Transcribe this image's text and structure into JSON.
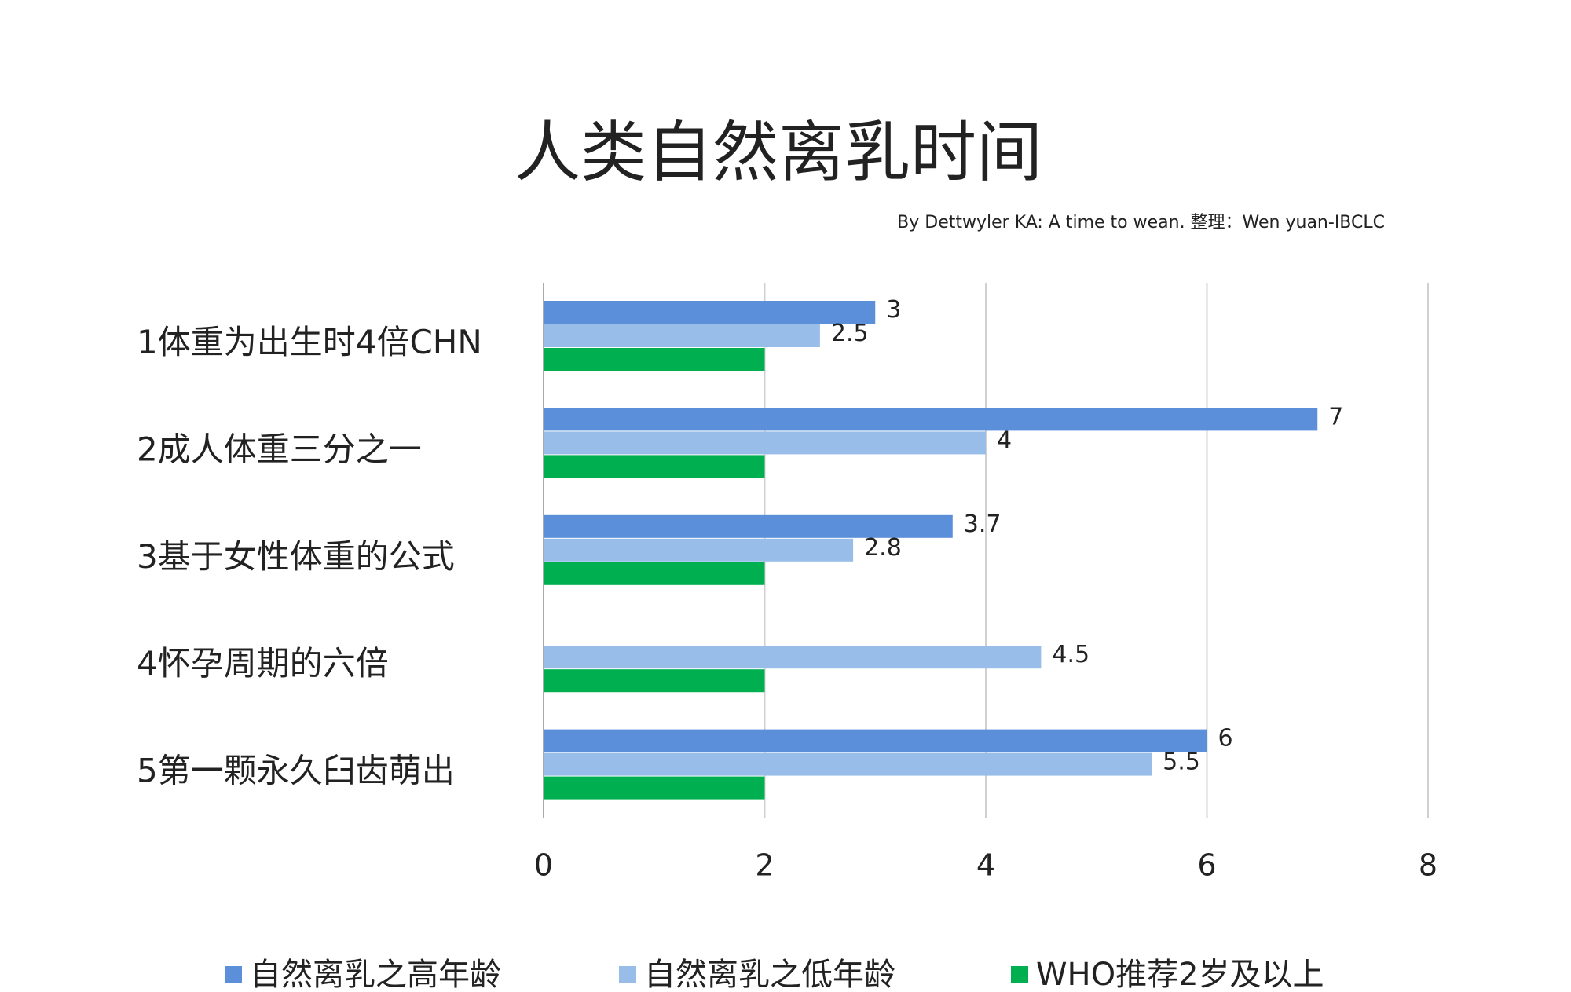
{
  "chart_data": {
    "type": "bar",
    "orientation": "horizontal",
    "title": "人类自然离乳时间",
    "subtitle": "By Dettwyler KA: A time to wean.  整理：Wen yuan-IBCLC",
    "categories": [
      "1体重为出生时4倍CHN",
      "2成人体重三分之一",
      "3基于女性体重的公式",
      "4怀孕周期的六倍",
      "5第一颗永久臼齿萌出"
    ],
    "series": [
      {
        "name": "自然离乳之高年龄",
        "color": "#5b8fd9",
        "values": [
          3,
          7,
          3.7,
          null,
          6
        ]
      },
      {
        "name": "自然离乳之低年龄",
        "color": "#98bde8",
        "values": [
          2.5,
          4,
          2.8,
          4.5,
          5.5
        ]
      },
      {
        "name": "WHO推荐2岁及以上",
        "color": "#00b050",
        "values": [
          2,
          2,
          2,
          2,
          2
        ]
      }
    ],
    "xlim": [
      0,
      8
    ],
    "xticks": [
      0,
      2,
      4,
      6,
      8
    ],
    "grid": true,
    "legend": "bottom"
  }
}
